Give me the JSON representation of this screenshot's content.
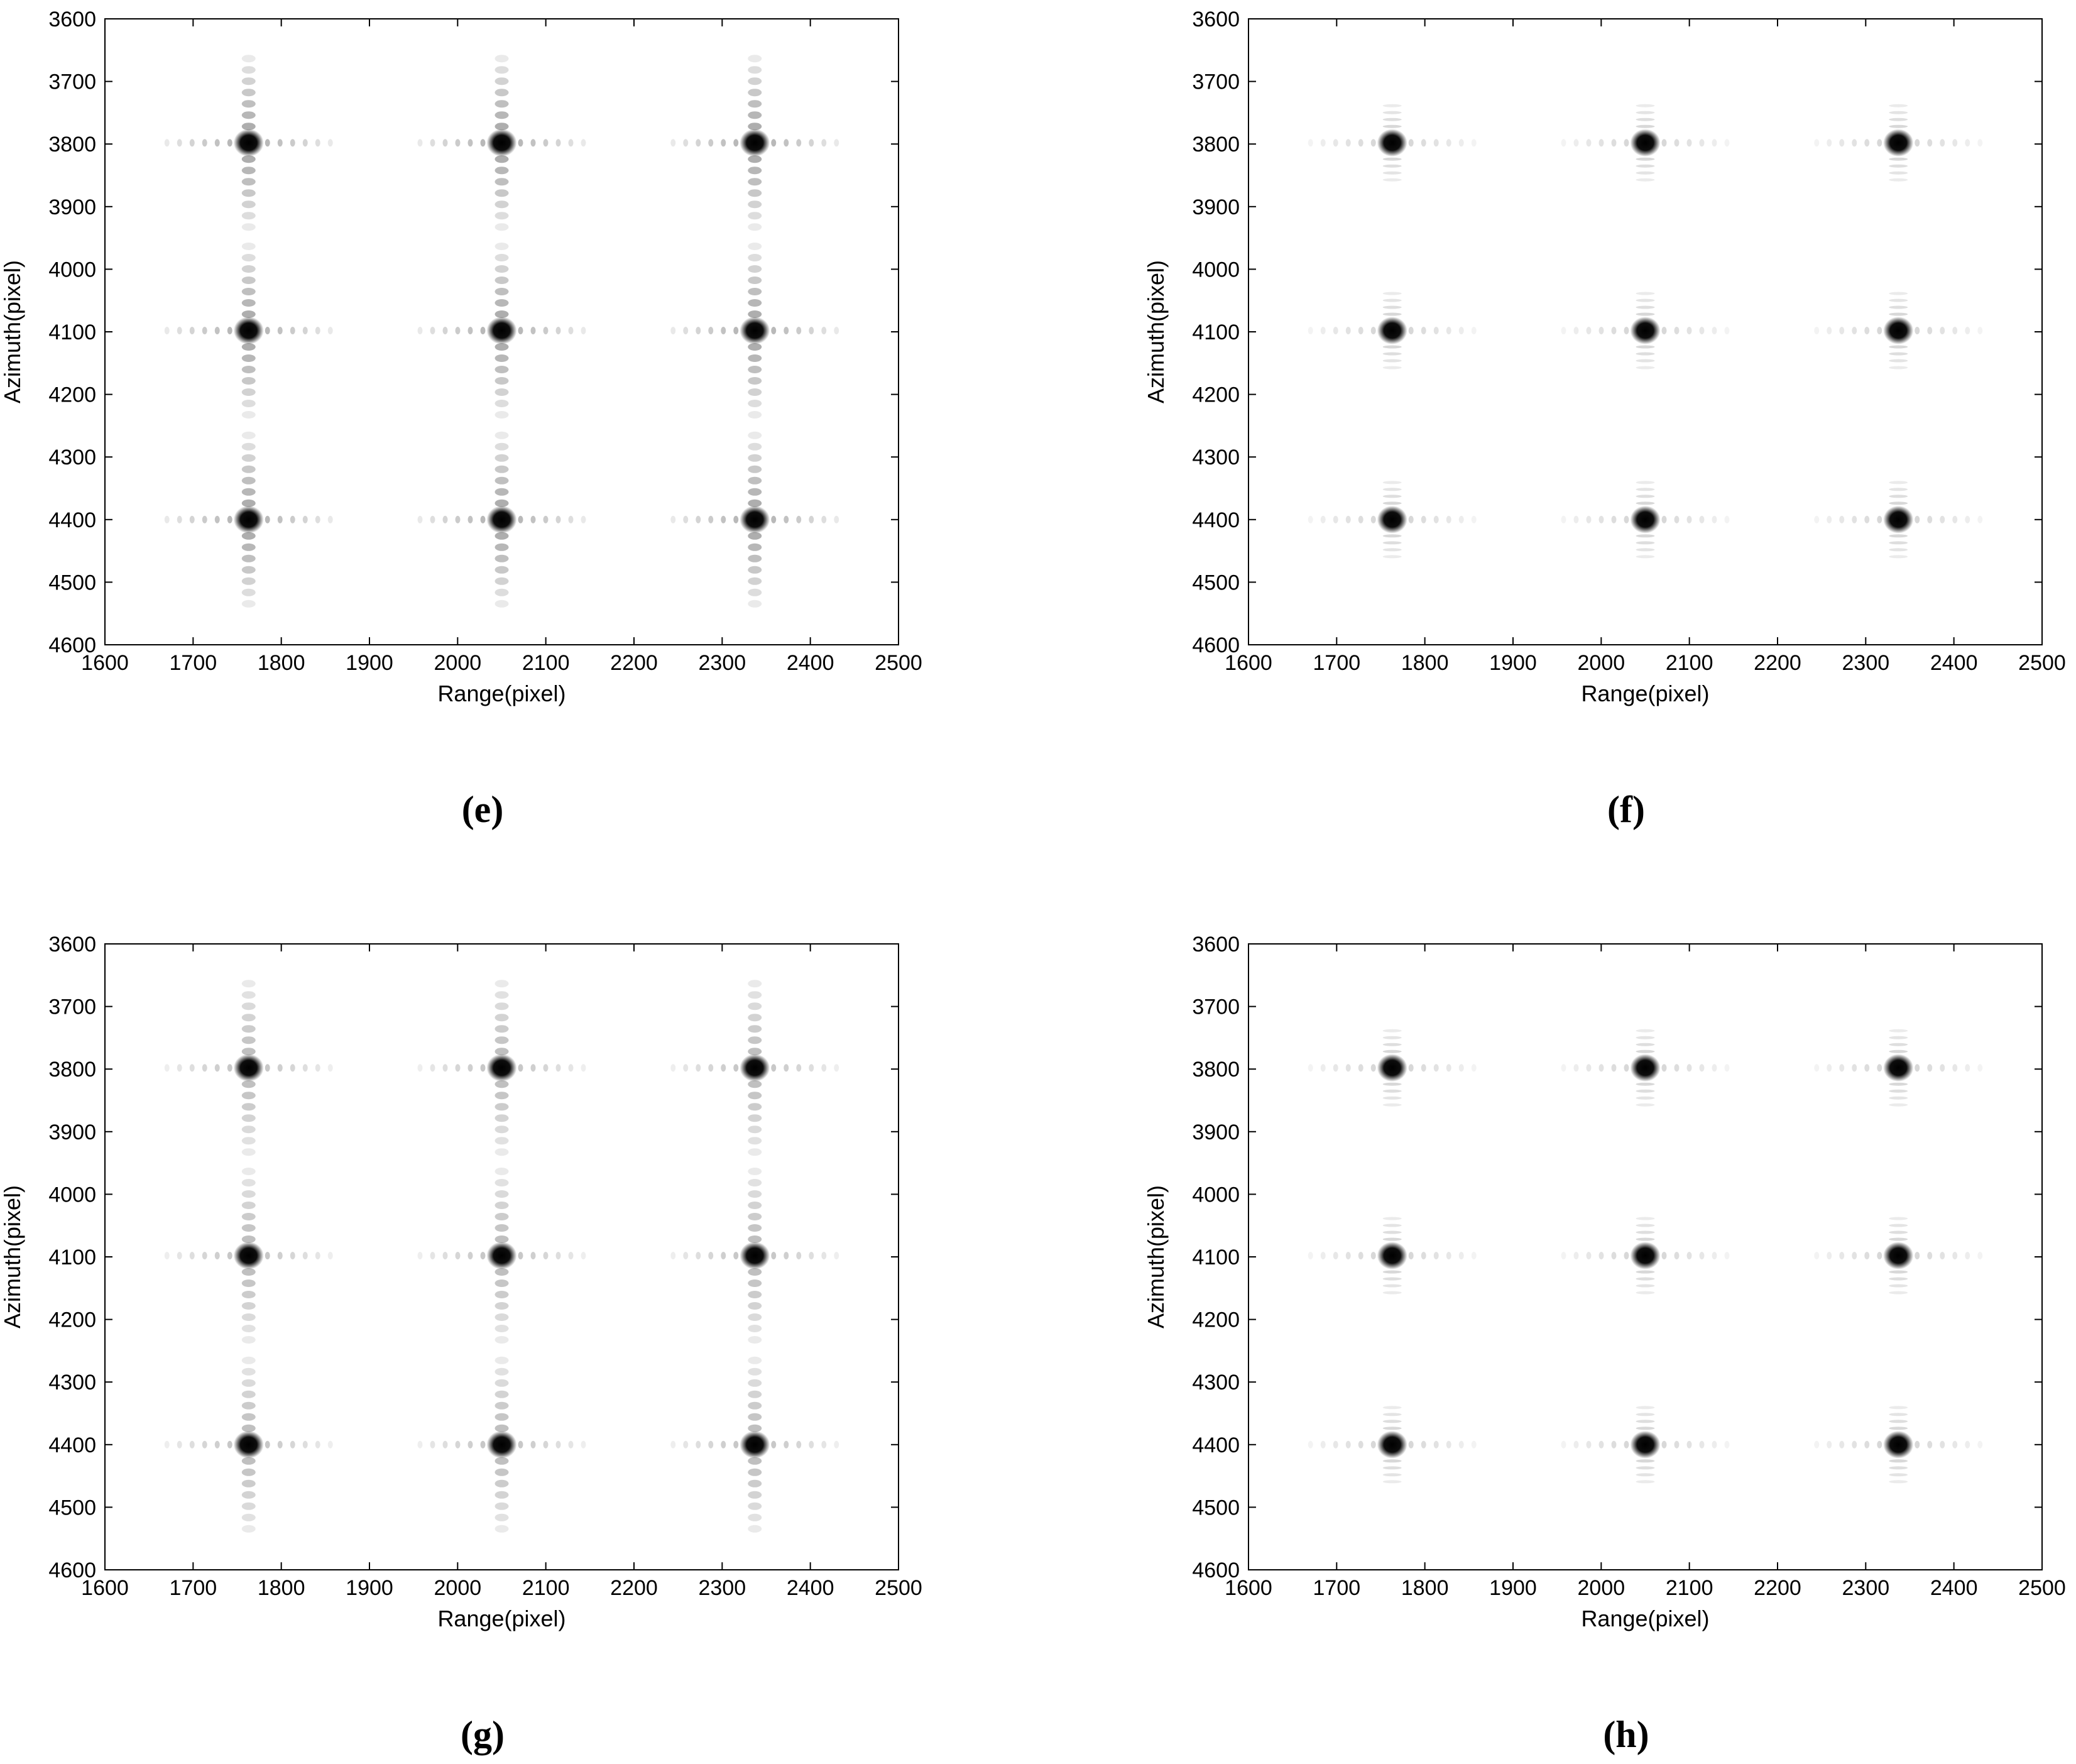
{
  "figure": {
    "panels": [
      "(e)",
      "(f)",
      "(g)",
      "(h)"
    ]
  },
  "chart_data": [
    {
      "panel": "(e)",
      "type": "heatmap",
      "xlabel": "Range(pixel)",
      "ylabel": "Azimuth(pixel)",
      "xlim": [
        1600,
        2500
      ],
      "ylim": [
        3600,
        4600
      ],
      "y_inverted": true,
      "xticks": [
        1600,
        1700,
        1800,
        1900,
        2000,
        2100,
        2200,
        2300,
        2400,
        2500
      ],
      "yticks": [
        3600,
        3700,
        3800,
        3900,
        4000,
        4100,
        4200,
        4300,
        4400,
        4500,
        4600
      ],
      "grid": false,
      "colormap": "grayscale-inverted",
      "point_targets": {
        "range": [
          1763,
          2050,
          2337
        ],
        "azimuth": [
          3798,
          4098,
          4400
        ],
        "azimuth_sidelobe_extent": 135,
        "range_sidelobe_extent": 100,
        "sidelobe_strength": "strong"
      }
    },
    {
      "panel": "(f)",
      "type": "heatmap",
      "xlabel": "Range(pixel)",
      "ylabel": "Azimuth(pixel)",
      "xlim": [
        1600,
        2500
      ],
      "ylim": [
        3600,
        4600
      ],
      "y_inverted": true,
      "xticks": [
        1600,
        1700,
        1800,
        1900,
        2000,
        2100,
        2200,
        2300,
        2400,
        2500
      ],
      "yticks": [
        3600,
        3700,
        3800,
        3900,
        4000,
        4100,
        4200,
        4300,
        4400,
        4500,
        4600
      ],
      "grid": false,
      "colormap": "grayscale-inverted",
      "point_targets": {
        "range": [
          1763,
          2050,
          2337
        ],
        "azimuth": [
          3798,
          4098,
          4400
        ],
        "azimuth_sidelobe_extent": 70,
        "range_sidelobe_extent": 100,
        "sidelobe_strength": "weak"
      }
    },
    {
      "panel": "(g)",
      "type": "heatmap",
      "xlabel": "Range(pixel)",
      "ylabel": "Azimuth(pixel)",
      "xlim": [
        1600,
        2500
      ],
      "ylim": [
        3600,
        4600
      ],
      "y_inverted": true,
      "xticks": [
        1600,
        1700,
        1800,
        1900,
        2000,
        2100,
        2200,
        2300,
        2400,
        2500
      ],
      "yticks": [
        3600,
        3700,
        3800,
        3900,
        4000,
        4100,
        4200,
        4300,
        4400,
        4500,
        4600
      ],
      "grid": false,
      "colormap": "grayscale-inverted",
      "point_targets": {
        "range": [
          1763,
          2050,
          2337
        ],
        "azimuth": [
          3798,
          4098,
          4400
        ],
        "azimuth_sidelobe_extent": 145,
        "range_sidelobe_extent": 100,
        "sidelobe_strength": "medium"
      }
    },
    {
      "panel": "(h)",
      "type": "heatmap",
      "xlabel": "Range(pixel)",
      "ylabel": "Azimuth(pixel)",
      "xlim": [
        1600,
        2500
      ],
      "ylim": [
        3600,
        4600
      ],
      "y_inverted": true,
      "xticks": [
        1600,
        1700,
        1800,
        1900,
        2000,
        2100,
        2200,
        2300,
        2400,
        2500
      ],
      "yticks": [
        3600,
        3700,
        3800,
        3900,
        4000,
        4100,
        4200,
        4300,
        4400,
        4500,
        4600
      ],
      "grid": false,
      "colormap": "grayscale-inverted",
      "point_targets": {
        "range": [
          1763,
          2050,
          2337
        ],
        "azimuth": [
          3798,
          4098,
          4400
        ],
        "azimuth_sidelobe_extent": 70,
        "range_sidelobe_extent": 100,
        "sidelobe_strength": "weak"
      }
    }
  ]
}
